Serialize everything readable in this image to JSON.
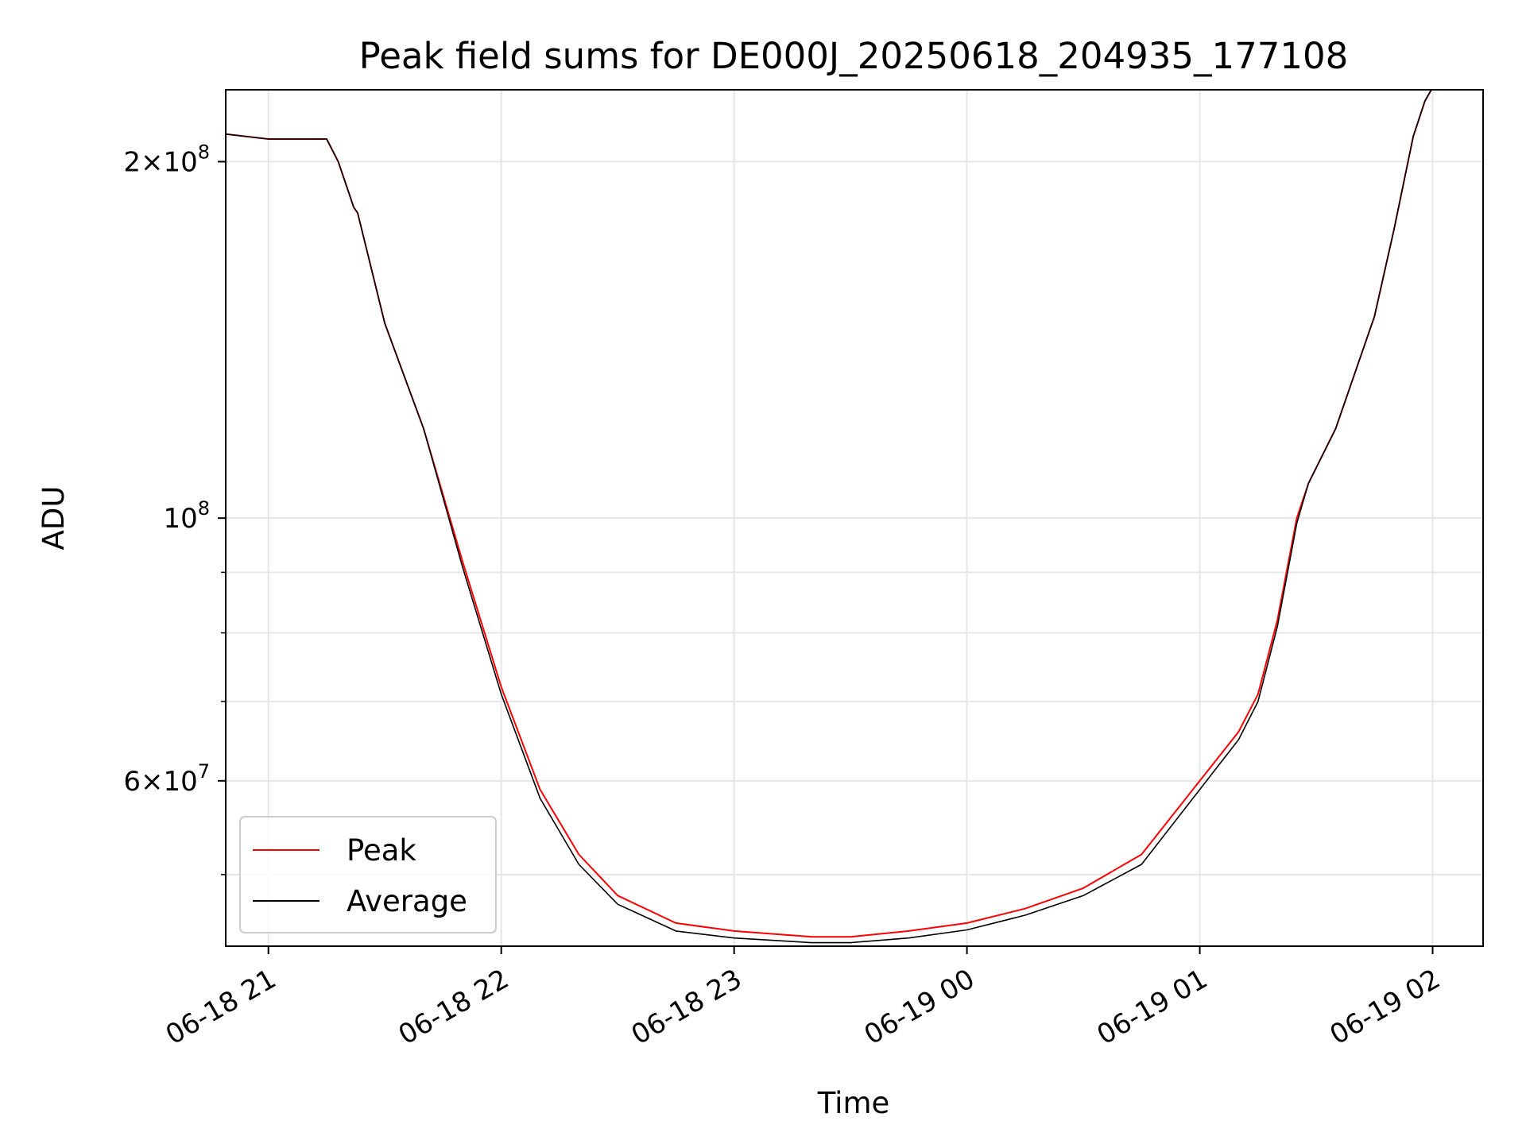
{
  "chart_data": {
    "type": "line",
    "title": "Peak field sums for DE000J_20250618_204935_177108",
    "xlabel": "Time",
    "ylabel": "ADU",
    "yscale": "log",
    "grid": true,
    "legend_position": "lower-left",
    "xlim": [
      "2025-06-18 20:49",
      "2025-06-19 02:13"
    ],
    "ylim": [
      43500000,
      230000000
    ],
    "x_ticks": [
      {
        "t": "2025-06-18 21:00",
        "label": "06-18 21"
      },
      {
        "t": "2025-06-18 22:00",
        "label": "06-18 22"
      },
      {
        "t": "2025-06-18 23:00",
        "label": "06-18 23"
      },
      {
        "t": "2025-06-19 00:00",
        "label": "06-19 00"
      },
      {
        "t": "2025-06-19 01:00",
        "label": "06-19 01"
      },
      {
        "t": "2025-06-19 02:00",
        "label": "06-19 02"
      }
    ],
    "y_major_ticks": [
      {
        "v": 100000000,
        "mant": "",
        "base": "10",
        "exp": "8"
      },
      {
        "v": 200000000,
        "mant": "2×",
        "base": "10",
        "exp": "8"
      },
      {
        "v": 60000000,
        "mant": "6×",
        "base": "10",
        "exp": "7"
      }
    ],
    "y_minor_ticks": [
      50000000,
      70000000,
      80000000,
      90000000
    ],
    "series": [
      {
        "name": "Peak",
        "color": "#ff0000",
        "x": [
          "2025-06-18 20:49",
          "2025-06-18 21:00",
          "2025-06-18 21:15",
          "2025-06-18 21:18",
          "2025-06-18 21:22",
          "2025-06-18 21:23",
          "2025-06-18 21:30",
          "2025-06-18 21:40",
          "2025-06-18 21:50",
          "2025-06-18 22:00",
          "2025-06-18 22:10",
          "2025-06-18 22:20",
          "2025-06-18 22:30",
          "2025-06-18 22:45",
          "2025-06-18 23:00",
          "2025-06-18 23:20",
          "2025-06-18 23:30",
          "2025-06-18 23:45",
          "2025-06-19 00:00",
          "2025-06-19 00:15",
          "2025-06-19 00:30",
          "2025-06-19 00:45",
          "2025-06-19 01:00",
          "2025-06-19 01:10",
          "2025-06-19 01:15",
          "2025-06-19 01:20",
          "2025-06-19 01:25",
          "2025-06-19 01:28",
          "2025-06-19 01:35",
          "2025-06-19 01:45",
          "2025-06-19 01:50",
          "2025-06-19 01:55",
          "2025-06-19 01:58",
          "2025-06-19 02:00"
        ],
        "y": [
          211000000,
          209000000,
          209000000,
          200000000,
          183000000,
          181000000,
          146000000,
          119000000,
          92000000,
          72000000,
          59000000,
          52000000,
          48000000,
          45500000,
          44800000,
          44300000,
          44300000,
          44800000,
          45500000,
          46800000,
          48700000,
          52000000,
          60000000,
          66000000,
          71000000,
          82000000,
          100000000,
          107000000,
          119000000,
          148000000,
          175000000,
          210000000,
          225000000,
          231000000
        ]
      },
      {
        "name": "Average",
        "color": "#000000",
        "x": [
          "2025-06-18 20:49",
          "2025-06-18 21:00",
          "2025-06-18 21:15",
          "2025-06-18 21:18",
          "2025-06-18 21:22",
          "2025-06-18 21:23",
          "2025-06-18 21:30",
          "2025-06-18 21:40",
          "2025-06-18 21:50",
          "2025-06-18 22:00",
          "2025-06-18 22:10",
          "2025-06-18 22:20",
          "2025-06-18 22:30",
          "2025-06-18 22:45",
          "2025-06-18 23:00",
          "2025-06-18 23:20",
          "2025-06-18 23:30",
          "2025-06-18 23:45",
          "2025-06-19 00:00",
          "2025-06-19 00:15",
          "2025-06-19 00:30",
          "2025-06-19 00:45",
          "2025-06-19 01:00",
          "2025-06-19 01:10",
          "2025-06-19 01:15",
          "2025-06-19 01:20",
          "2025-06-19 01:25",
          "2025-06-19 01:28",
          "2025-06-19 01:35",
          "2025-06-19 01:45",
          "2025-06-19 01:50",
          "2025-06-19 01:55",
          "2025-06-19 01:58",
          "2025-06-19 02:00"
        ],
        "y": [
          211000000,
          209000000,
          209000000,
          200000000,
          183000000,
          181000000,
          146000000,
          119000000,
          91000000,
          71000000,
          58000000,
          51000000,
          47200000,
          44800000,
          44200000,
          43800000,
          43800000,
          44200000,
          44900000,
          46200000,
          48000000,
          51000000,
          59000000,
          65000000,
          70000000,
          81000000,
          99000000,
          107000000,
          119000000,
          148000000,
          175000000,
          210000000,
          225000000,
          231000000
        ]
      }
    ]
  }
}
